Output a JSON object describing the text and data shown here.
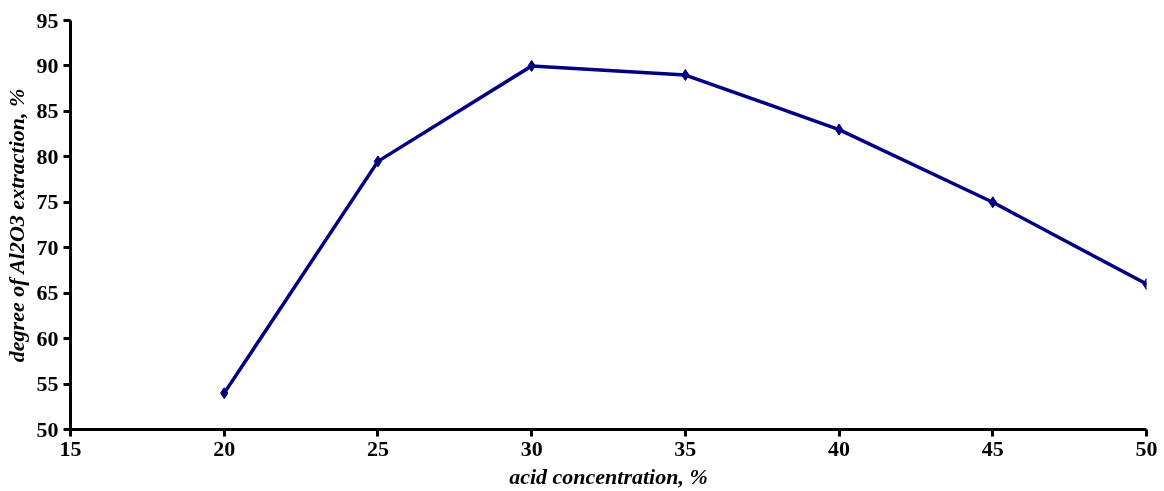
{
  "chart_data": {
    "type": "line",
    "xlabel": "acid concentration, %",
    "ylabel": "degree of Al2O3 extraction, %",
    "x": [
      20,
      25,
      30,
      35,
      40,
      45,
      50
    ],
    "series": [
      {
        "color": "#000080",
        "values": [
          54,
          79.5,
          90,
          89,
          83,
          75,
          66
        ]
      }
    ],
    "xlim": [
      15,
      50
    ],
    "ylim": [
      50,
      95
    ],
    "xticks": [
      15,
      20,
      25,
      30,
      35,
      40,
      45,
      50
    ],
    "yticks": [
      50,
      55,
      60,
      65,
      70,
      75,
      80,
      85,
      90,
      95
    ],
    "grid": false,
    "marker": "diamond",
    "line_style": "solid"
  }
}
